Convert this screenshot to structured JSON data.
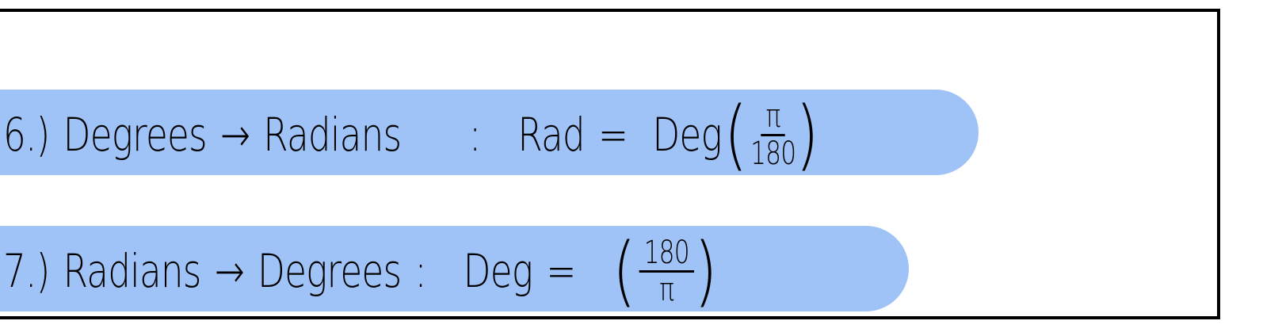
{
  "highlight_color": "#a0c3f7",
  "rows": [
    {
      "number": "6.)",
      "from": "Degrees",
      "arrow": "→",
      "to": "Radians",
      "colon": ":",
      "lhs": "Rad",
      "eq": "=",
      "factor": "Deg",
      "open": "(",
      "num": "π",
      "den": "180",
      "close": ")"
    },
    {
      "number": "7.)",
      "from": "Radians",
      "arrow": "→",
      "to": "Degrees",
      "colon": ":",
      "lhs": "Deg",
      "eq": "=",
      "factor": "",
      "open": "(",
      "num": "180",
      "den": "π",
      "close": ")"
    }
  ]
}
